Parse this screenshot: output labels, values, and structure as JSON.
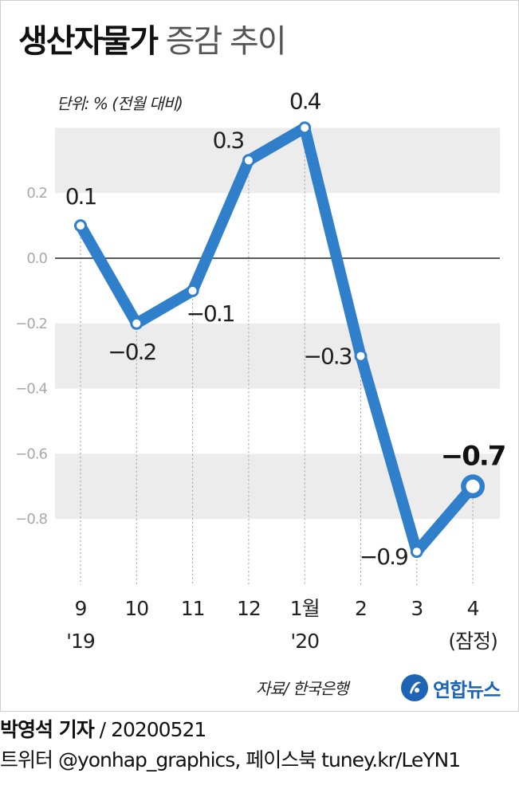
{
  "title": {
    "bold": "생산자물가",
    "light": "증감 추이"
  },
  "unit": "단위: % (전월 대비)",
  "source": "자료/ 한국은행",
  "logo": {
    "name": "연합뉴스",
    "icon": "yonhap-logo-icon"
  },
  "footer": {
    "reporter": "박영석 기자",
    "separator": "/",
    "date": "20200521",
    "social": "트위터 @yonhap_graphics, 페이스북 tuney.kr/LeYN1"
  },
  "colors": {
    "line": "#2f7fcb",
    "band": "#ececec",
    "zero": "#222222"
  },
  "chart_data": {
    "type": "line",
    "title": "생산자물가 증감 추이",
    "ylabel": "단위: % (전월 대비)",
    "ylim": [
      -0.9,
      0.4
    ],
    "yticks": [
      -0.8,
      -0.6,
      -0.4,
      -0.2,
      0.0,
      0.2
    ],
    "ytick_labels": [
      "−0.8",
      "−0.6",
      "−0.4",
      "−0.2",
      "0.0",
      "0.2"
    ],
    "categories": [
      "9",
      "10",
      "11",
      "12",
      "1월",
      "2",
      "3",
      "4"
    ],
    "sublabels": [
      "'19",
      "",
      "",
      "",
      "'20",
      "",
      "",
      "(잠정)"
    ],
    "values": [
      0.1,
      -0.2,
      -0.1,
      0.3,
      0.4,
      -0.3,
      -0.9,
      -0.7
    ],
    "labels": [
      "0.1",
      "−0.2",
      "−0.1",
      "0.3",
      "0.4",
      "−0.3",
      "−0.9",
      "−0.7"
    ],
    "highlight_last": true,
    "grid": "alternating bands"
  }
}
